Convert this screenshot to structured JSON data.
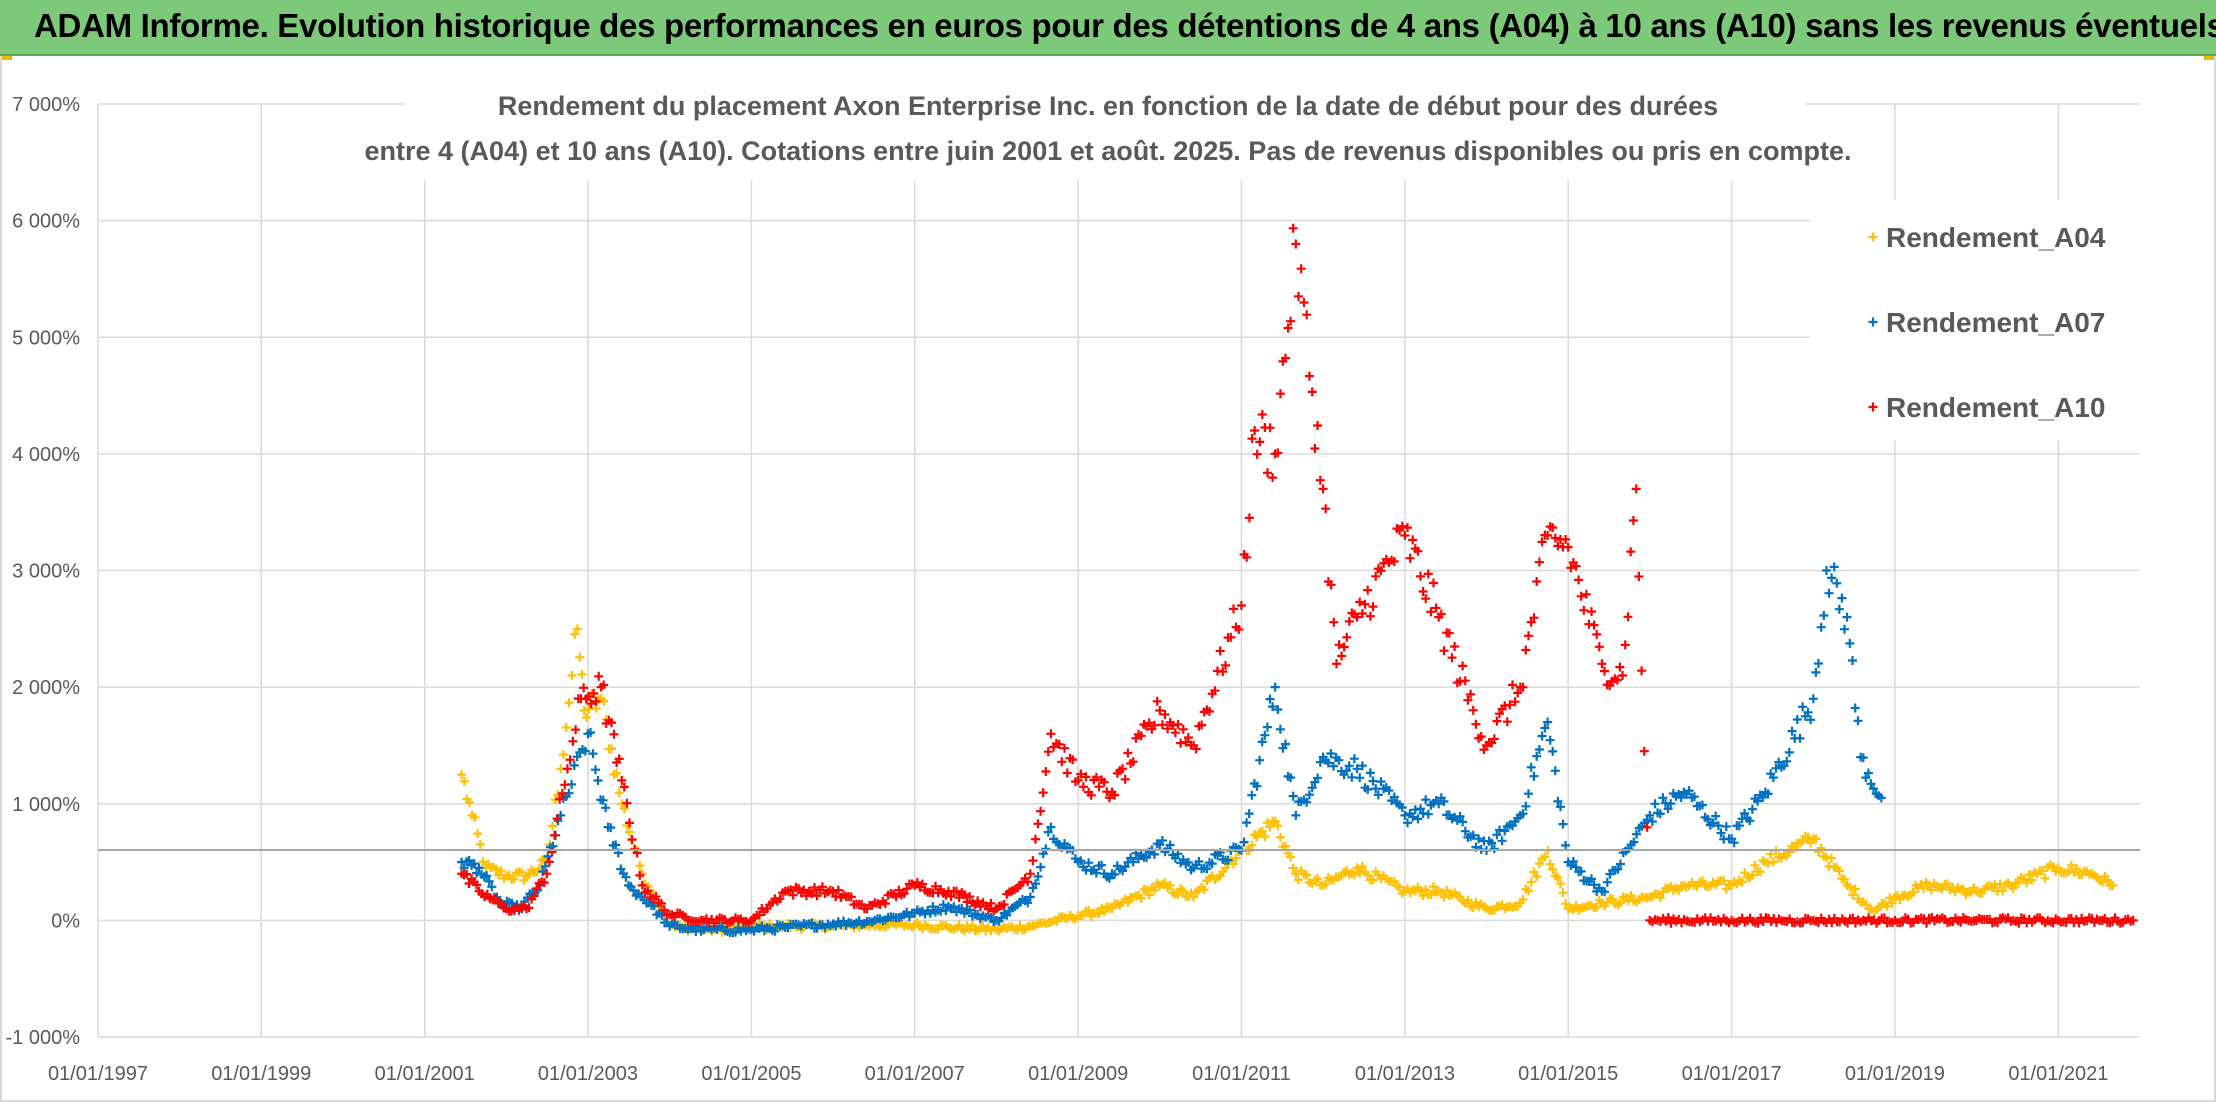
{
  "header": {
    "title": "ADAM Informe. Evolution historique des performances en euros pour des détentions de 4 ans (A04) à 10 ans (A10) sans les revenus éventuels"
  },
  "colors": {
    "banner": "#7dc97a",
    "A04": "#ffc000",
    "A07": "#0070c0",
    "A10": "#ff0000",
    "grid": "#d9d9d9",
    "text": "#595959"
  },
  "chart_data": {
    "type": "scatter",
    "title_lines": [
      "Rendement du placement Axon Enterprise Inc. en fonction de la date de début pour des durées",
      "entre 4 (A04) et 10 ans (A10). Cotations entre juin 2001 et août. 2025. Pas de revenus disponibles ou pris en compte."
    ],
    "x_axis": {
      "type": "date",
      "range": [
        "1997-01-01",
        "2022-01-01"
      ],
      "tick_labels": [
        "01/01/1997",
        "01/01/1999",
        "01/01/2001",
        "01/01/2003",
        "01/01/2005",
        "01/01/2007",
        "01/01/2009",
        "01/01/2011",
        "01/01/2013",
        "01/01/2015",
        "01/01/2017",
        "01/01/2019",
        "01/01/2021"
      ]
    },
    "y_axis": {
      "range": [
        -1000,
        7000
      ],
      "unit": "%",
      "tick_labels": [
        "-1 000%",
        "0%",
        "1 000%",
        "2 000%",
        "3 000%",
        "4 000%",
        "5 000%",
        "6 000%",
        "7 000%"
      ],
      "tick_values": [
        -1000,
        0,
        1000,
        2000,
        3000,
        4000,
        5000,
        6000,
        7000
      ]
    },
    "grid": true,
    "legend_position": "top-right",
    "marker": "+",
    "series": [
      {
        "name": "Rendement_A04",
        "color": "#ffc000",
        "points": [
          [
            "2001-06-15",
            1250
          ],
          [
            "2001-08-01",
            900
          ],
          [
            "2001-10-01",
            450
          ],
          [
            "2002-01-01",
            380
          ],
          [
            "2002-04-01",
            380
          ],
          [
            "2002-07-01",
            500
          ],
          [
            "2002-09-01",
            1300
          ],
          [
            "2002-11-15",
            2500
          ],
          [
            "2002-12-15",
            1800
          ],
          [
            "2003-03-01",
            1900
          ],
          [
            "2003-06-01",
            1000
          ],
          [
            "2003-09-01",
            400
          ],
          [
            "2004-01-01",
            -50
          ],
          [
            "2004-06-01",
            -80
          ],
          [
            "2005-01-01",
            -60
          ],
          [
            "2005-06-01",
            -50
          ],
          [
            "2006-01-01",
            -50
          ],
          [
            "2006-06-01",
            -40
          ],
          [
            "2007-01-01",
            -40
          ],
          [
            "2007-06-01",
            -60
          ],
          [
            "2008-01-01",
            -80
          ],
          [
            "2008-06-01",
            -50
          ],
          [
            "2009-01-01",
            40
          ],
          [
            "2009-06-01",
            100
          ],
          [
            "2010-01-01",
            300
          ],
          [
            "2010-06-01",
            200
          ],
          [
            "2011-01-01",
            600
          ],
          [
            "2011-06-01",
            850
          ],
          [
            "2011-09-01",
            400
          ],
          [
            "2012-01-01",
            300
          ],
          [
            "2012-06-01",
            450
          ],
          [
            "2013-01-01",
            250
          ],
          [
            "2013-06-01",
            250
          ],
          [
            "2014-01-01",
            100
          ],
          [
            "2014-06-01",
            150
          ],
          [
            "2014-10-01",
            600
          ],
          [
            "2015-01-01",
            100
          ],
          [
            "2015-06-01",
            150
          ],
          [
            "2016-01-01",
            200
          ],
          [
            "2016-06-01",
            300
          ],
          [
            "2017-01-01",
            300
          ],
          [
            "2017-06-01",
            500
          ],
          [
            "2018-01-01",
            700
          ],
          [
            "2018-06-01",
            300
          ],
          [
            "2018-10-01",
            80
          ],
          [
            "2019-01-01",
            200
          ],
          [
            "2019-06-01",
            300
          ],
          [
            "2020-01-01",
            250
          ],
          [
            "2020-06-01",
            300
          ],
          [
            "2021-01-01",
            450
          ],
          [
            "2021-06-01",
            400
          ],
          [
            "2021-09-01",
            300
          ]
        ]
      },
      {
        "name": "Rendement_A07",
        "color": "#0070c0",
        "points": [
          [
            "2001-06-15",
            500
          ],
          [
            "2001-09-01",
            450
          ],
          [
            "2001-12-01",
            150
          ],
          [
            "2002-03-01",
            100
          ],
          [
            "2002-06-01",
            300
          ],
          [
            "2002-09-01",
            900
          ],
          [
            "2003-01-01",
            1600
          ],
          [
            "2003-04-01",
            800
          ],
          [
            "2003-07-01",
            300
          ],
          [
            "2003-10-01",
            150
          ],
          [
            "2004-01-01",
            -50
          ],
          [
            "2004-06-01",
            -80
          ],
          [
            "2005-01-01",
            -80
          ],
          [
            "2005-06-01",
            -60
          ],
          [
            "2006-01-01",
            -30
          ],
          [
            "2006-06-01",
            -10
          ],
          [
            "2007-01-01",
            60
          ],
          [
            "2007-06-01",
            120
          ],
          [
            "2008-01-01",
            0
          ],
          [
            "2008-06-01",
            200
          ],
          [
            "2008-09-01",
            800
          ],
          [
            "2009-01-01",
            500
          ],
          [
            "2009-06-01",
            400
          ],
          [
            "2010-01-01",
            650
          ],
          [
            "2010-06-01",
            450
          ],
          [
            "2011-01-01",
            600
          ],
          [
            "2011-06-01",
            2000
          ],
          [
            "2011-09-01",
            900
          ],
          [
            "2012-01-01",
            1400
          ],
          [
            "2012-06-01",
            1300
          ],
          [
            "2013-01-01",
            900
          ],
          [
            "2013-06-01",
            1000
          ],
          [
            "2014-01-01",
            600
          ],
          [
            "2014-06-01",
            900
          ],
          [
            "2014-10-01",
            1700
          ],
          [
            "2015-01-01",
            500
          ],
          [
            "2015-06-01",
            250
          ],
          [
            "2016-01-01",
            900
          ],
          [
            "2016-06-01",
            1100
          ],
          [
            "2017-01-01",
            700
          ],
          [
            "2017-06-01",
            1100
          ],
          [
            "2018-01-01",
            1900
          ],
          [
            "2018-03-01",
            3000
          ],
          [
            "2018-06-01",
            2600
          ],
          [
            "2018-08-01",
            1400
          ],
          [
            "2018-11-01",
            1050
          ]
        ]
      },
      {
        "name": "Rendement_A10",
        "color": "#ff0000",
        "points": [
          [
            "2001-06-15",
            400
          ],
          [
            "2001-09-01",
            250
          ],
          [
            "2002-01-01",
            100
          ],
          [
            "2002-04-01",
            100
          ],
          [
            "2002-07-01",
            400
          ],
          [
            "2002-10-01",
            1300
          ],
          [
            "2002-12-01",
            1900
          ],
          [
            "2003-03-01",
            2000
          ],
          [
            "2003-06-01",
            1200
          ],
          [
            "2003-09-01",
            300
          ],
          [
            "2004-01-01",
            50
          ],
          [
            "2004-06-01",
            0
          ],
          [
            "2005-01-01",
            0
          ],
          [
            "2005-06-01",
            250
          ],
          [
            "2006-01-01",
            250
          ],
          [
            "2006-06-01",
            100
          ],
          [
            "2007-01-01",
            300
          ],
          [
            "2007-06-01",
            250
          ],
          [
            "2008-01-01",
            100
          ],
          [
            "2008-06-01",
            400
          ],
          [
            "2008-09-01",
            1600
          ],
          [
            "2009-01-01",
            1200
          ],
          [
            "2009-06-01",
            1100
          ],
          [
            "2010-01-01",
            1800
          ],
          [
            "2010-06-01",
            1500
          ],
          [
            "2011-01-01",
            2700
          ],
          [
            "2011-03-01",
            4200
          ],
          [
            "2011-06-01",
            4000
          ],
          [
            "2011-09-01",
            5800
          ],
          [
            "2012-01-01",
            3700
          ],
          [
            "2012-03-01",
            2200
          ],
          [
            "2012-06-01",
            2600
          ],
          [
            "2013-01-01",
            3300
          ],
          [
            "2013-06-01",
            2600
          ],
          [
            "2014-01-01",
            1500
          ],
          [
            "2014-06-01",
            2000
          ],
          [
            "2014-10-01",
            3300
          ],
          [
            "2015-01-01",
            3200
          ],
          [
            "2015-06-01",
            2200
          ],
          [
            "2015-09-01",
            2100
          ],
          [
            "2015-11-01",
            3700
          ],
          [
            "2016-01-01",
            0
          ],
          [
            "2017-01-01",
            0
          ],
          [
            "2018-01-01",
            0
          ],
          [
            "2019-01-01",
            0
          ],
          [
            "2020-01-01",
            0
          ],
          [
            "2021-01-01",
            0
          ],
          [
            "2021-12-01",
            0
          ]
        ]
      }
    ]
  }
}
